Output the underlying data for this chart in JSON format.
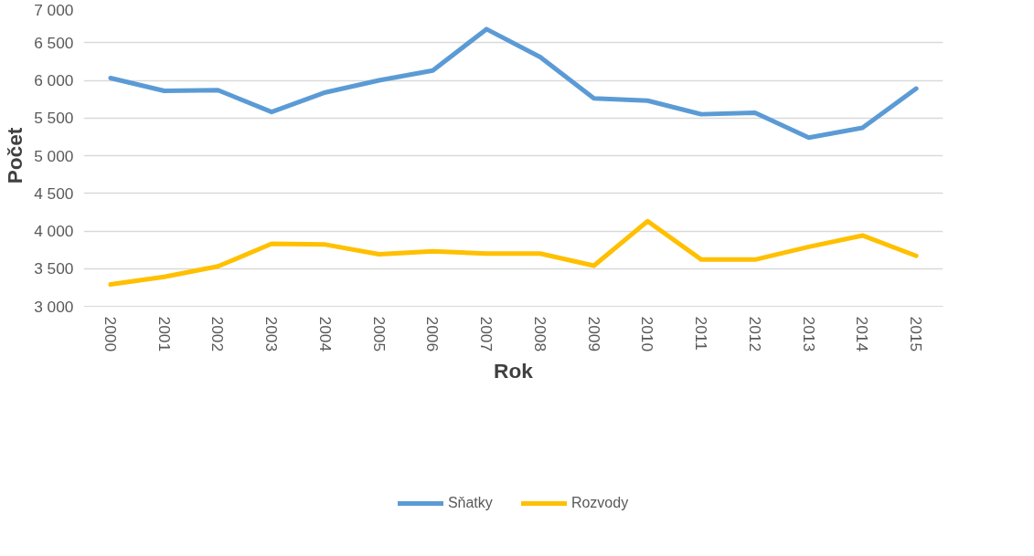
{
  "chart_data": {
    "type": "line",
    "xlabel": "Rok",
    "ylabel": "Počet",
    "categories": [
      "2000",
      "2001",
      "2002",
      "2003",
      "2004",
      "2005",
      "2006",
      "2007",
      "2008",
      "2009",
      "2010",
      "2011",
      "2012",
      "2013",
      "2014",
      "2015"
    ],
    "series": [
      {
        "name": "Sňatky",
        "color": "#5b9bd5",
        "values": [
          6030,
          5860,
          5870,
          5580,
          5840,
          6000,
          6130,
          6680,
          6310,
          5760,
          5730,
          5550,
          5570,
          5240,
          5370,
          5890
        ]
      },
      {
        "name": "Rozvody",
        "color": "#ffc000",
        "values": [
          3290,
          3390,
          3530,
          3830,
          3820,
          3690,
          3730,
          3700,
          3700,
          3540,
          4130,
          3620,
          3620,
          3790,
          3940,
          3670
        ]
      }
    ],
    "ylim": [
      3000,
      7000
    ],
    "yticks": [
      {
        "value": 3000,
        "label": "3 000"
      },
      {
        "value": 3500,
        "label": "3 500"
      },
      {
        "value": 4000,
        "label": "4 000"
      },
      {
        "value": 4500,
        "label": "4 500"
      },
      {
        "value": 5000,
        "label": "5 000"
      },
      {
        "value": 5500,
        "label": "5 500"
      },
      {
        "value": 6000,
        "label": "6 000"
      },
      {
        "value": 6500,
        "label": "6 500"
      },
      {
        "value": 7000,
        "label": "7 000"
      }
    ],
    "grid": "y",
    "legend": "bottom",
    "marker": "none",
    "line_style": "solid"
  }
}
